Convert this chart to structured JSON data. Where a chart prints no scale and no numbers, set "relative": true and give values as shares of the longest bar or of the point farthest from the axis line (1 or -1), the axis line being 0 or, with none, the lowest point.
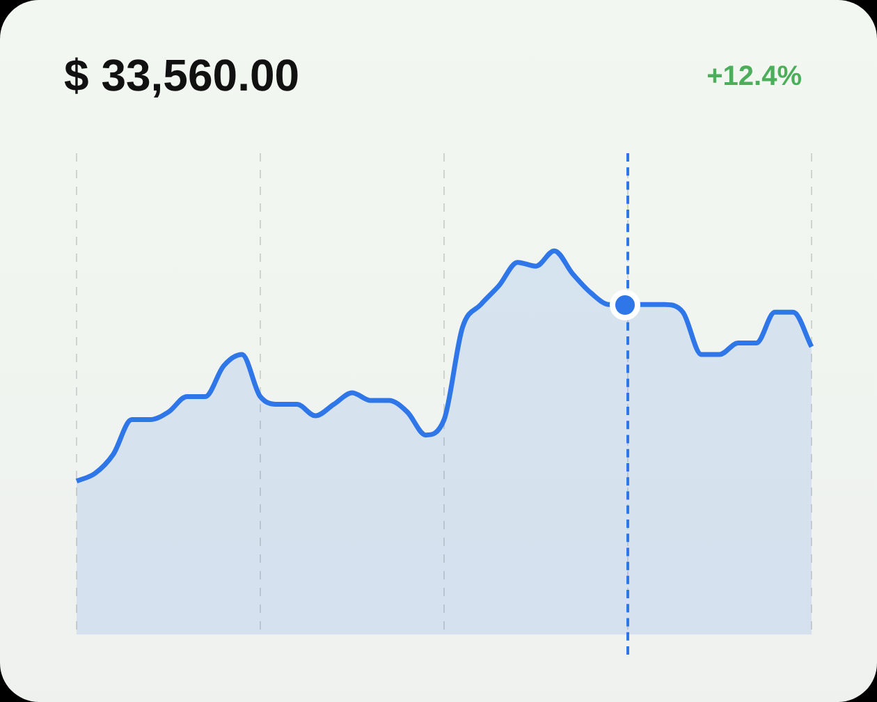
{
  "chart_data": {
    "type": "area",
    "title": "$ 33,560.00",
    "annotations": [
      "+12.4%"
    ],
    "relative": true,
    "categories": [
      null,
      null,
      null,
      null,
      null,
      null,
      null,
      null,
      null,
      null,
      null,
      null,
      null,
      null,
      null,
      null,
      null,
      null,
      null,
      null,
      null,
      null,
      null,
      null,
      null,
      null,
      null,
      null,
      null,
      null,
      null,
      null,
      null,
      null,
      null,
      null,
      null,
      null,
      null,
      null,
      null
    ],
    "grid": "x",
    "marker": "none",
    "series": [
      {
        "color": "#2f76e8",
        "values": [
          0.4,
          0.42,
          0.47,
          0.56,
          0.56,
          0.58,
          0.62,
          0.62,
          0.7,
          0.73,
          0.62,
          0.6,
          0.6,
          0.57,
          0.6,
          0.63,
          0.61,
          0.61,
          0.58,
          0.52,
          0.56,
          0.8,
          0.86,
          0.91,
          0.97,
          0.96,
          1,
          0.94,
          0.89,
          0.86,
          0.86,
          0.86,
          0.86,
          0.84,
          0.73,
          0.73,
          0.76,
          0.76,
          0.84,
          0.84,
          0.75
        ]
      }
    ]
  }
}
